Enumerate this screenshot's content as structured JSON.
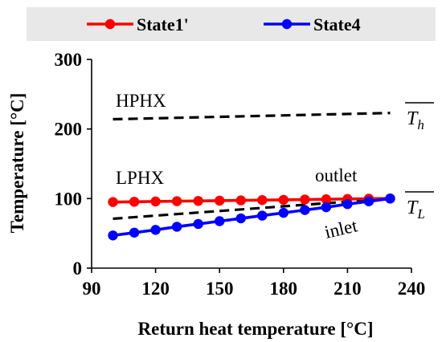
{
  "chart_data": {
    "type": "line",
    "xlabel": "Return heat temperature [°C]",
    "ylabel": "Temperature [°C]",
    "xlim": [
      90,
      240
    ],
    "ylim": [
      0,
      300
    ],
    "x_ticks": [
      90,
      120,
      150,
      180,
      210,
      240
    ],
    "y_ticks": [
      0,
      100,
      200,
      300
    ],
    "grid": false,
    "legend_position": "top",
    "series": [
      {
        "name": "State1'",
        "color": "#ff0000",
        "marker": "circle",
        "x": [
          100,
          110,
          120,
          130,
          140,
          150,
          160,
          170,
          180,
          190,
          200,
          210,
          220,
          230
        ],
        "y": [
          95,
          95.4,
          95.8,
          96.2,
          96.6,
          97,
          97.4,
          97.8,
          98.2,
          98.6,
          99,
          99.4,
          99.8,
          100.2
        ]
      },
      {
        "name": "State4",
        "color": "#0000ff",
        "marker": "circle",
        "x": [
          100,
          110,
          120,
          130,
          140,
          150,
          160,
          170,
          180,
          190,
          200,
          210,
          220,
          230
        ],
        "y": [
          47,
          51,
          55,
          59.5,
          63.5,
          67.5,
          71.5,
          75.5,
          79.5,
          83.5,
          87.5,
          92,
          96,
          100
        ]
      }
    ],
    "reference_lines": [
      {
        "label": "Th",
        "color": "#000000",
        "style": "dashed",
        "x": [
          100,
          230
        ],
        "y": [
          214,
          223
        ]
      },
      {
        "label": "TL",
        "color": "#000000",
        "style": "dashed",
        "x": [
          100,
          230
        ],
        "y": [
          71,
          100
        ]
      }
    ],
    "annotations": {
      "hphx": "HPHX",
      "lphx": "LPHX",
      "outlet": "outlet",
      "inlet": "inlet",
      "th_base": "T",
      "th_sub": "h",
      "tl_base": "T",
      "tl_sub": "L"
    }
  }
}
